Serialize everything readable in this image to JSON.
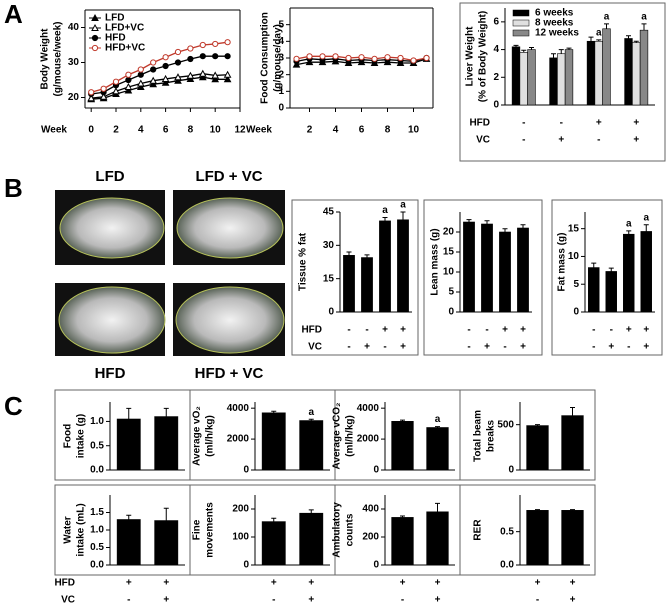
{
  "panels": [
    "A",
    "B",
    "C"
  ],
  "mouse_images": [
    "LFD",
    "LFD + VC",
    "HFD",
    "HFD + VC"
  ],
  "chart_data": [
    {
      "type": "line",
      "ylabel": [
        "Body Weight",
        "(g/mouse/week)"
      ],
      "xlabel": "Week",
      "x": [
        0,
        1,
        2,
        3,
        4,
        5,
        6,
        7,
        8,
        9,
        10,
        11
      ],
      "xlim": [
        -0.5,
        12
      ],
      "xticks": [
        0,
        2,
        4,
        6,
        8,
        10,
        12
      ],
      "ylim": [
        17,
        45
      ],
      "yticks": [
        20,
        30,
        40
      ],
      "series": [
        {
          "name": "LFD",
          "color": "#000000",
          "marker": "triangle",
          "filled": true,
          "values": [
            19.5,
            19.8,
            21,
            22,
            23,
            23.8,
            24.2,
            24.8,
            25.3,
            25.8,
            25.2,
            25.2
          ]
        },
        {
          "name": "LFD+VC",
          "color": "#000000",
          "marker": "triangle",
          "filled": false,
          "values": [
            19.8,
            20.2,
            21.8,
            23,
            24,
            24.8,
            25.3,
            25.8,
            26.2,
            26.8,
            26.3,
            26.5
          ]
        },
        {
          "name": "HFD",
          "color": "#000000",
          "marker": "circle",
          "filled": true,
          "values": [
            21,
            21.5,
            23.5,
            25,
            26.5,
            28,
            29,
            30,
            31,
            31.8,
            31.8,
            31.8
          ]
        },
        {
          "name": "HFD+VC",
          "color": "#c0392b",
          "marker": "circle",
          "filled": false,
          "values": [
            21.5,
            22.5,
            24.5,
            26.5,
            28,
            30,
            31.5,
            33,
            34,
            35,
            35.3,
            35.8
          ]
        }
      ]
    },
    {
      "type": "line",
      "ylabel": [
        "Food Consumption",
        "(g/mouse/day)"
      ],
      "xlabel": "Week",
      "x": [
        1,
        2,
        3,
        4,
        5,
        6,
        7,
        8,
        9,
        10,
        11
      ],
      "xlim": [
        0.5,
        11.5
      ],
      "xticks": [
        2,
        4,
        6,
        8,
        10
      ],
      "ylim": [
        0,
        6
      ],
      "yticks": [
        0,
        1,
        2,
        3,
        4,
        5
      ],
      "series": [
        {
          "color": "#000000",
          "marker": "triangle",
          "filled": true,
          "values": [
            2.6,
            2.75,
            2.75,
            2.8,
            2.7,
            2.75,
            2.7,
            2.75,
            2.7,
            2.7,
            2.95
          ]
        },
        {
          "color": "#000000",
          "marker": "circle",
          "filled": true,
          "values": [
            2.8,
            2.95,
            2.9,
            2.95,
            2.85,
            2.9,
            2.85,
            2.9,
            2.85,
            2.8,
            3.0
          ]
        },
        {
          "color": "#c0392b",
          "marker": "circle",
          "filled": false,
          "values": [
            2.95,
            3.1,
            3.1,
            3.1,
            3.0,
            3.05,
            2.95,
            3.05,
            3.0,
            2.85,
            3.0
          ]
        }
      ]
    },
    {
      "type": "bar",
      "ylabel": [
        "Liver Weight",
        "(% of Body Weight)"
      ],
      "ylim": [
        0,
        7
      ],
      "yticks": [
        0,
        2,
        4,
        6
      ],
      "series": [
        {
          "name": "6 weeks",
          "color": "#000000",
          "values": [
            4.2,
            3.4,
            4.6,
            4.8
          ],
          "errors": [
            0.1,
            0.3,
            0.3,
            0.2
          ],
          "annotations": [
            null,
            null,
            null,
            null
          ]
        },
        {
          "name": "8 weeks",
          "color": "#e0e0e0",
          "values": [
            3.8,
            3.7,
            4.6,
            4.5
          ],
          "errors": [
            0.15,
            0.3,
            0.1,
            0.1
          ],
          "annotations": [
            null,
            null,
            "a",
            null
          ]
        },
        {
          "name": "12 weeks",
          "color": "#888888",
          "values": [
            4.0,
            4.0,
            5.5,
            5.4
          ],
          "errors": [
            0.15,
            0.1,
            0.35,
            0.45
          ],
          "annotations": [
            null,
            null,
            "a",
            "a"
          ]
        }
      ],
      "treatment": [
        {
          "label": "HFD",
          "values": [
            "-",
            "-",
            "+",
            "+"
          ]
        },
        {
          "label": "VC",
          "values": [
            "-",
            "+",
            "-",
            "+"
          ]
        }
      ]
    },
    {
      "type": "bar",
      "ylabel": [
        "Tissue % fat"
      ],
      "ylim": [
        0,
        45
      ],
      "yticks": [
        0,
        15,
        30,
        45
      ],
      "color": "#000000",
      "values": [
        25.5,
        24.5,
        41,
        41.5
      ],
      "errors": [
        1.5,
        1.2,
        1.5,
        3.5
      ],
      "annotations": [
        null,
        null,
        "a",
        "a"
      ],
      "treatment": [
        {
          "label": "HFD",
          "values": [
            "-",
            "-",
            "+",
            "+"
          ]
        },
        {
          "label": "VC",
          "values": [
            "-",
            "+",
            "-",
            "+"
          ]
        }
      ]
    },
    {
      "type": "bar",
      "ylabel": [
        "Lean mass (g)"
      ],
      "ylim": [
        0,
        25
      ],
      "yticks": [
        0,
        5,
        10,
        15,
        20
      ],
      "color": "#000000",
      "values": [
        22.5,
        22,
        20,
        21
      ],
      "errors": [
        0.6,
        0.8,
        0.8,
        0.8
      ],
      "treatment": [
        {
          "values": [
            "-",
            "-",
            "+",
            "+"
          ]
        },
        {
          "values": [
            "-",
            "+",
            "-",
            "+"
          ]
        }
      ]
    },
    {
      "type": "bar",
      "ylabel": [
        "Fat mass (g)"
      ],
      "ylim": [
        0,
        18
      ],
      "yticks": [
        0,
        5,
        10,
        15
      ],
      "color": "#000000",
      "values": [
        8,
        7.3,
        14,
        14.5
      ],
      "errors": [
        0.8,
        0.6,
        0.6,
        1.2
      ],
      "annotations": [
        null,
        null,
        "a",
        "a"
      ],
      "treatment": [
        {
          "values": [
            "-",
            "-",
            "+",
            "+"
          ]
        },
        {
          "values": [
            "-",
            "+",
            "-",
            "+"
          ]
        }
      ]
    },
    {
      "type": "bar",
      "ylabel": [
        "Food",
        "intake (g)"
      ],
      "ylim": [
        0,
        1.4
      ],
      "yticks": [
        {
          "value": 0,
          "label": "0.0"
        },
        {
          "value": 0.5,
          "label": "0.5"
        },
        {
          "value": 1,
          "label": "1.0"
        }
      ],
      "color": "#000000",
      "values": [
        1.05,
        1.1
      ],
      "errors": [
        0.22,
        0.17
      ]
    },
    {
      "type": "bar",
      "ylabel": [
        "Average vO₂",
        "(ml/h/kg)"
      ],
      "ylim": [
        0,
        4400
      ],
      "yticks": [
        0,
        2000,
        4000
      ],
      "color": "#000000",
      "values": [
        3700,
        3200
      ],
      "errors": [
        100,
        80
      ],
      "annotations": [
        null,
        "a"
      ]
    },
    {
      "type": "bar",
      "ylabel": [
        "Average vCO₂",
        "(ml/h/kg)"
      ],
      "ylim": [
        0,
        4400
      ],
      "yticks": [
        0,
        2000,
        4000
      ],
      "color": "#000000",
      "values": [
        3150,
        2750
      ],
      "errors": [
        80,
        60
      ],
      "annotations": [
        null,
        "a"
      ]
    },
    {
      "type": "bar",
      "ylabel": [
        "Total beam",
        "breaks"
      ],
      "ylim": [
        0,
        750
      ],
      "yticks": [
        0,
        500
      ],
      "color": "#000000",
      "values": [
        490,
        600
      ],
      "errors": [
        10,
        90
      ]
    },
    {
      "type": "bar",
      "ylabel": [
        "Water",
        "intake (mL)"
      ],
      "ylim": [
        0,
        2
      ],
      "yticks": [
        {
          "value": 0,
          "label": "0.0"
        },
        {
          "value": 0.5,
          "label": "0.5"
        },
        {
          "value": 1,
          "label": "1.0"
        },
        {
          "value": 1.5,
          "label": "1.5"
        }
      ],
      "color": "#000000",
      "values": [
        1.3,
        1.27
      ],
      "errors": [
        0.12,
        0.35
      ],
      "treatment": [
        {
          "label": "HFD",
          "values": [
            "+",
            "+"
          ]
        },
        {
          "label": "VC",
          "values": [
            "-",
            "+"
          ]
        }
      ]
    },
    {
      "type": "bar",
      "ylabel": [
        "Fine",
        "movements"
      ],
      "ylim": [
        0,
        250
      ],
      "yticks": [
        0,
        100,
        200
      ],
      "color": "#000000",
      "values": [
        155,
        185
      ],
      "errors": [
        12,
        12
      ],
      "treatment": [
        {
          "values": [
            "+",
            "+"
          ]
        },
        {
          "values": [
            "-",
            "+"
          ]
        }
      ]
    },
    {
      "type": "bar",
      "ylabel": [
        "Ambulatory",
        "counts"
      ],
      "ylim": [
        0,
        500
      ],
      "yticks": [
        0,
        200,
        400
      ],
      "color": "#000000",
      "values": [
        340,
        380
      ],
      "errors": [
        10,
        60
      ],
      "treatment": [
        {
          "values": [
            "+",
            "+"
          ]
        },
        {
          "values": [
            "-",
            "+"
          ]
        }
      ]
    },
    {
      "type": "bar",
      "ylabel": [
        "RER"
      ],
      "ylim": [
        0,
        1.05
      ],
      "yticks": [
        {
          "value": 0,
          "label": "0.0"
        },
        {
          "value": 0.5,
          "label": "0.5"
        }
      ],
      "color": "#000000",
      "values": [
        0.82,
        0.82
      ],
      "errors": [
        0.01,
        0.01
      ],
      "treatment": [
        {
          "values": [
            "+",
            "+"
          ]
        },
        {
          "values": [
            "-",
            "+"
          ]
        }
      ]
    }
  ]
}
